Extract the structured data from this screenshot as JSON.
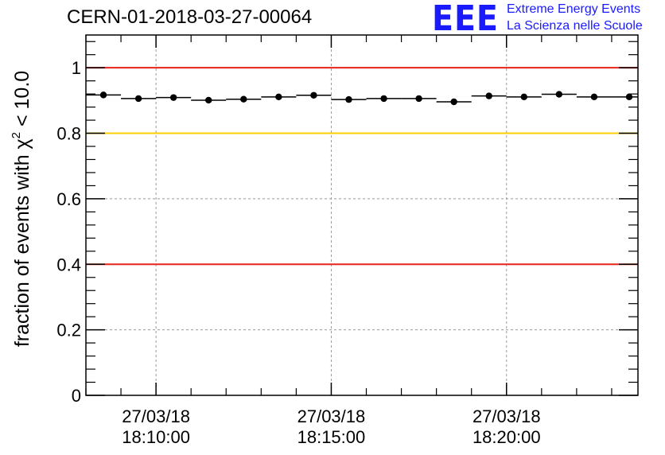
{
  "header": {
    "run_title": "CERN-01-2018-03-27-00064"
  },
  "logo": {
    "mark": "EEE",
    "line1": "Extreme Energy Events",
    "line2": "La Scienza nelle Scuole",
    "color": "#1a1aff"
  },
  "chart_data": {
    "type": "scatter",
    "ylabel_main": "fraction of events with χ",
    "ylabel_sup": "2",
    "ylabel_tail": " < 10.0",
    "ylim": [
      0,
      1.1
    ],
    "y_ticks": [
      0,
      0.2,
      0.4,
      0.6,
      0.8,
      1
    ],
    "y_tick_labels": [
      "0",
      "0.2",
      "0.4",
      "0.6",
      "0.8",
      "1"
    ],
    "xlim": [
      "2018-03-27 18:08:00",
      "2018-03-27 18:23:45"
    ],
    "x_ticks": [
      {
        "time": "2018-03-27 18:10:00",
        "date_label": "27/03/18",
        "time_label": "18:10:00"
      },
      {
        "time": "2018-03-27 18:15:00",
        "date_label": "27/03/18",
        "time_label": "18:15:00"
      },
      {
        "time": "2018-03-27 18:20:00",
        "date_label": "27/03/18",
        "time_label": "18:20:00"
      }
    ],
    "grid": true,
    "series": [
      {
        "bin_width_minutes": 1,
        "x": [
          "18:08:30",
          "18:09:30",
          "18:10:30",
          "18:11:30",
          "18:12:30",
          "18:13:30",
          "18:14:30",
          "18:15:30",
          "18:16:30",
          "18:17:30",
          "18:18:30",
          "18:19:30",
          "18:20:30",
          "18:21:30",
          "18:22:30",
          "18:23:30"
        ],
        "y": [
          0.917,
          0.906,
          0.909,
          0.901,
          0.904,
          0.911,
          0.916,
          0.903,
          0.906,
          0.906,
          0.896,
          0.914,
          0.911,
          0.919,
          0.911,
          0.911
        ]
      }
    ],
    "reference_lines": [
      {
        "y": 1.0,
        "color": "#e8231a"
      },
      {
        "y": 0.8,
        "color": "#ffcc00"
      },
      {
        "y": 0.4,
        "color": "#e8231a"
      }
    ]
  }
}
